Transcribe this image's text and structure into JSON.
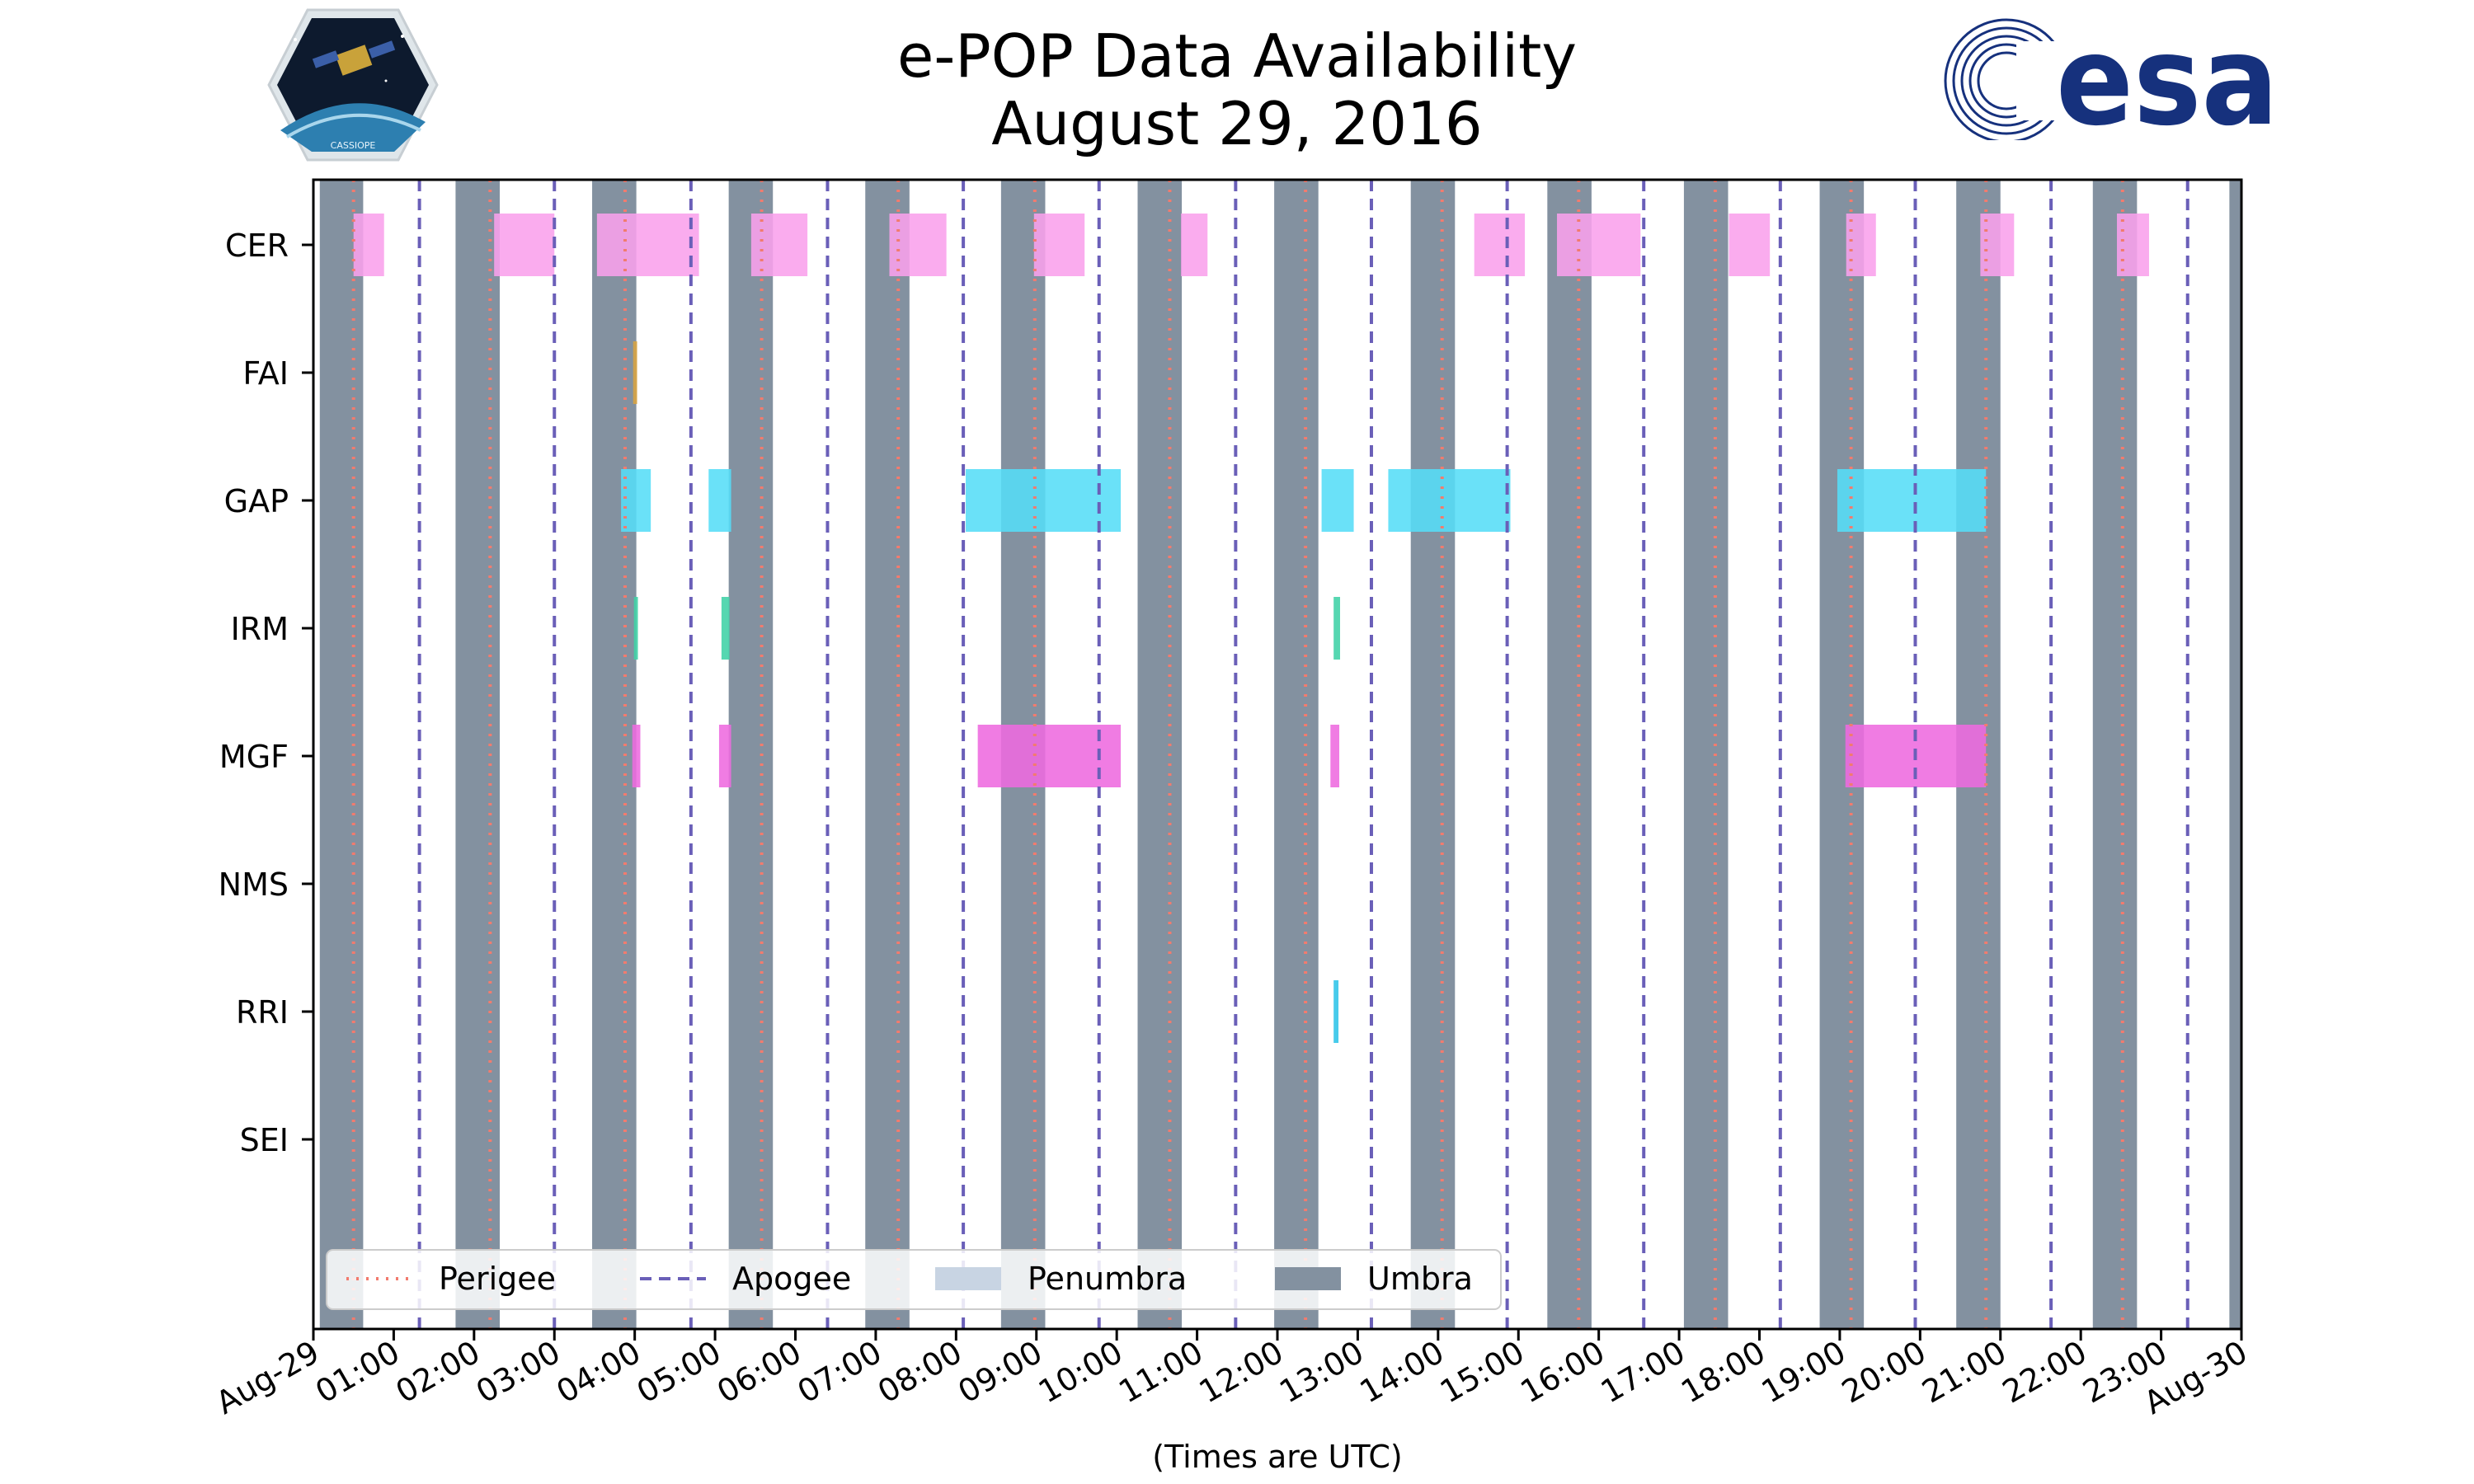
{
  "title": "e-POP Data Availability",
  "subtitle": "August 29, 2016",
  "logos": {
    "left_mission": "CASSIOPE",
    "right_agency": "esa"
  },
  "colors": {
    "umbra": "#8391a0",
    "penumbra": "#c8d4e3",
    "perigee": "#f27b6e",
    "apogee": "#6a5fb8",
    "CER": "#f9a0ec",
    "FAI": "#d9a441",
    "GAP": "#55ddf7",
    "IRM": "#3fd1a6",
    "MGF": "#ee6adf",
    "RRI": "#2ec4e8",
    "esa_blue": "#16317d"
  },
  "chart_data": {
    "type": "timeline",
    "title": "e-POP Data Availability",
    "subtitle": "August 29, 2016",
    "xlabel": "(Times are UTC)",
    "ylabel": "",
    "x_range_hours": [
      0,
      24
    ],
    "x_ticks": [
      "Aug-29",
      "01:00",
      "02:00",
      "03:00",
      "04:00",
      "05:00",
      "06:00",
      "07:00",
      "08:00",
      "09:00",
      "10:00",
      "11:00",
      "12:00",
      "13:00",
      "14:00",
      "15:00",
      "16:00",
      "17:00",
      "18:00",
      "19:00",
      "20:00",
      "21:00",
      "22:00",
      "23:00",
      "Aug-30"
    ],
    "instruments": [
      "CER",
      "FAI",
      "GAP",
      "IRM",
      "MGF",
      "NMS",
      "RRI",
      "SEI"
    ],
    "umbra_hours": [
      [
        0.08,
        0.62
      ],
      [
        1.77,
        2.32
      ],
      [
        3.47,
        4.02
      ],
      [
        5.17,
        5.72
      ],
      [
        6.87,
        7.42
      ],
      [
        8.56,
        9.11
      ],
      [
        10.26,
        10.81
      ],
      [
        11.96,
        12.51
      ],
      [
        13.66,
        14.21
      ],
      [
        15.36,
        15.91
      ],
      [
        17.06,
        17.61
      ],
      [
        18.75,
        19.3
      ],
      [
        20.45,
        21.0
      ],
      [
        22.15,
        22.7
      ],
      [
        23.85,
        24.0
      ]
    ],
    "perigee_hours": [
      0.5,
      2.2,
      3.88,
      5.58,
      7.28,
      8.98,
      10.66,
      12.35,
      14.05,
      15.75,
      17.45,
      19.14,
      20.82,
      22.52
    ],
    "apogee_hours": [
      1.32,
      3.0,
      4.7,
      6.4,
      8.09,
      9.78,
      11.48,
      13.17,
      14.86,
      16.56,
      18.26,
      19.94,
      21.63,
      23.33
    ],
    "series": [
      {
        "name": "CER",
        "intervals": [
          [
            0.5,
            0.88
          ],
          [
            2.25,
            3.0
          ],
          [
            3.53,
            4.8
          ],
          [
            5.45,
            6.15
          ],
          [
            7.17,
            7.88
          ],
          [
            8.97,
            9.6
          ],
          [
            10.8,
            11.13
          ],
          [
            14.45,
            15.08
          ],
          [
            15.48,
            16.52
          ],
          [
            17.62,
            18.13
          ],
          [
            19.08,
            19.45
          ],
          [
            20.75,
            21.17
          ],
          [
            22.45,
            22.85
          ]
        ]
      },
      {
        "name": "FAI",
        "intervals": [
          [
            3.98,
            4.03
          ]
        ]
      },
      {
        "name": "GAP",
        "intervals": [
          [
            3.83,
            4.2
          ],
          [
            4.92,
            5.2
          ],
          [
            8.12,
            10.05
          ],
          [
            12.55,
            12.95
          ],
          [
            13.38,
            14.9
          ],
          [
            18.97,
            20.82
          ]
        ]
      },
      {
        "name": "IRM",
        "intervals": [
          [
            3.99,
            4.04
          ],
          [
            5.08,
            5.18
          ]
        ],
        "extra": [
          [
            12.7,
            12.78
          ]
        ]
      },
      {
        "name": "MGF",
        "intervals": [
          [
            3.97,
            4.07
          ],
          [
            5.05,
            5.2
          ],
          [
            8.27,
            10.05
          ],
          [
            12.66,
            12.77
          ],
          [
            19.07,
            20.82
          ]
        ]
      },
      {
        "name": "NMS",
        "intervals": []
      },
      {
        "name": "RRI",
        "intervals": [
          [
            12.7,
            12.76
          ]
        ]
      },
      {
        "name": "SEI",
        "intervals": []
      }
    ],
    "legend": {
      "position": "lower-left",
      "items": [
        {
          "label": "Perigee",
          "style": "dotted"
        },
        {
          "label": "Apogee",
          "style": "dashed"
        },
        {
          "label": "Penumbra",
          "style": "patch-light"
        },
        {
          "label": "Umbra",
          "style": "patch-dark"
        }
      ]
    }
  }
}
